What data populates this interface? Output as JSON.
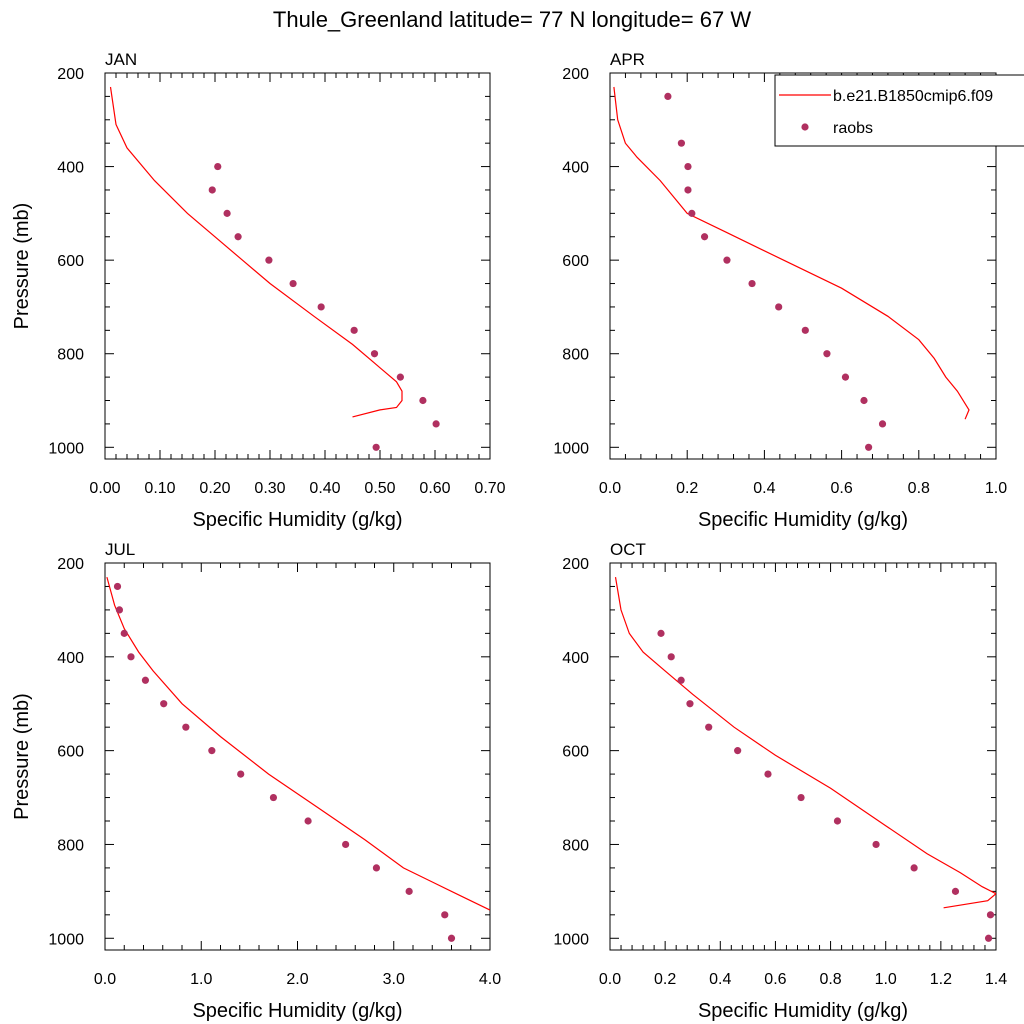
{
  "title": "Thule_Greenland  latitude= 77 N longitude= 67 W",
  "chart_data": [
    {
      "type": "line",
      "panel_label": "JAN",
      "xlabel": "Specific Humidity (g/kg)",
      "ylabel": "Pressure (mb)",
      "xlim": [
        0,
        0.7
      ],
      "ylim": [
        200,
        1025
      ],
      "y_reversed": true,
      "x_ticks": [
        "0.00",
        "0.10",
        "0.20",
        "0.30",
        "0.40",
        "0.50",
        "0.60",
        "0.70"
      ],
      "y_ticks": [
        "200",
        "400",
        "600",
        "800",
        "1000"
      ],
      "model": {
        "x": [
          0.01,
          0.02,
          0.04,
          0.09,
          0.15,
          0.2,
          0.25,
          0.3,
          0.38,
          0.45,
          0.49,
          0.53,
          0.54,
          0.54,
          0.53,
          0.5,
          0.45
        ],
        "y": [
          230,
          310,
          360,
          430,
          500,
          550,
          600,
          650,
          720,
          780,
          820,
          860,
          880,
          900,
          915,
          920,
          935
        ]
      },
      "obs": {
        "x": [
          0.205,
          0.195,
          0.222,
          0.242,
          0.298,
          0.342,
          0.393,
          0.453,
          0.49,
          0.537,
          0.578,
          0.602,
          0.493
        ],
        "y": [
          400,
          450,
          500,
          550,
          600,
          650,
          700,
          750,
          800,
          850,
          900,
          950,
          1000
        ]
      }
    },
    {
      "type": "line",
      "panel_label": "APR",
      "xlabel": "Specific Humidity (g/kg)",
      "ylabel": "",
      "xlim": [
        0,
        1.0
      ],
      "ylim": [
        200,
        1025
      ],
      "y_reversed": true,
      "x_ticks": [
        "0.0",
        "0.2",
        "0.4",
        "0.6",
        "0.8",
        "1.0"
      ],
      "y_ticks": [
        "200",
        "400",
        "600",
        "800",
        "1000"
      ],
      "legend": {
        "placement": "top-right",
        "model_label": "b.e21.B1850cmip6.f09",
        "obs_label": "raobs"
      },
      "model": {
        "x": [
          0.01,
          0.02,
          0.04,
          0.07,
          0.13,
          0.2,
          0.3,
          0.45,
          0.6,
          0.72,
          0.8,
          0.84,
          0.87,
          0.9,
          0.93,
          0.92
        ],
        "y": [
          230,
          300,
          350,
          380,
          430,
          500,
          540,
          600,
          660,
          720,
          770,
          810,
          850,
          880,
          920,
          940
        ]
      },
      "obs": {
        "x": [
          0.15,
          0.185,
          0.202,
          0.202,
          0.212,
          0.245,
          0.303,
          0.368,
          0.437,
          0.506,
          0.562,
          0.61,
          0.658,
          0.706,
          0.67
        ],
        "y": [
          250,
          350,
          400,
          450,
          500,
          550,
          600,
          650,
          700,
          750,
          800,
          850,
          900,
          950,
          1000
        ]
      }
    },
    {
      "type": "line",
      "panel_label": "JUL",
      "xlabel": "Specific Humidity (g/kg)",
      "ylabel": "Pressure (mb)",
      "xlim": [
        0,
        4.0
      ],
      "ylim": [
        200,
        1025
      ],
      "y_reversed": true,
      "x_ticks": [
        "0.0",
        "1.0",
        "2.0",
        "3.0",
        "4.0"
      ],
      "y_ticks": [
        "200",
        "400",
        "600",
        "800",
        "1000"
      ],
      "model": {
        "x": [
          0.02,
          0.1,
          0.2,
          0.35,
          0.5,
          0.8,
          1.2,
          1.7,
          2.2,
          2.7,
          3.1,
          3.4,
          3.7,
          4.0
        ],
        "y": [
          230,
          290,
          340,
          390,
          430,
          500,
          570,
          650,
          720,
          790,
          850,
          880,
          910,
          940
        ]
      },
      "obs": {
        "x": [
          0.13,
          0.15,
          0.2,
          0.27,
          0.42,
          0.61,
          0.84,
          1.11,
          1.41,
          1.75,
          2.11,
          2.5,
          2.82,
          3.16,
          3.53,
          3.6
        ],
        "y": [
          250,
          300,
          350,
          400,
          450,
          500,
          550,
          600,
          650,
          700,
          750,
          800,
          850,
          900,
          950,
          1000
        ]
      }
    },
    {
      "type": "line",
      "panel_label": "OCT",
      "xlabel": "Specific Humidity (g/kg)",
      "ylabel": "",
      "xlim": [
        0,
        1.4
      ],
      "ylim": [
        200,
        1025
      ],
      "y_reversed": true,
      "x_ticks": [
        "0.0",
        "0.2",
        "0.4",
        "0.6",
        "0.8",
        "1.0",
        "1.2",
        "1.4"
      ],
      "y_ticks": [
        "200",
        "400",
        "600",
        "800",
        "1000"
      ],
      "model": {
        "x": [
          0.02,
          0.04,
          0.07,
          0.12,
          0.2,
          0.3,
          0.45,
          0.6,
          0.8,
          1.0,
          1.15,
          1.27,
          1.35,
          1.4,
          1.37,
          1.21
        ],
        "y": [
          230,
          300,
          350,
          390,
          430,
          480,
          550,
          610,
          680,
          760,
          820,
          860,
          890,
          905,
          920,
          935
        ]
      },
      "obs": {
        "x": [
          0.185,
          0.222,
          0.258,
          0.29,
          0.358,
          0.463,
          0.573,
          0.693,
          0.825,
          0.965,
          1.103,
          1.253,
          1.38,
          1.373
        ],
        "y": [
          350,
          400,
          450,
          500,
          550,
          600,
          650,
          700,
          750,
          800,
          850,
          900,
          950,
          1000
        ]
      }
    }
  ]
}
